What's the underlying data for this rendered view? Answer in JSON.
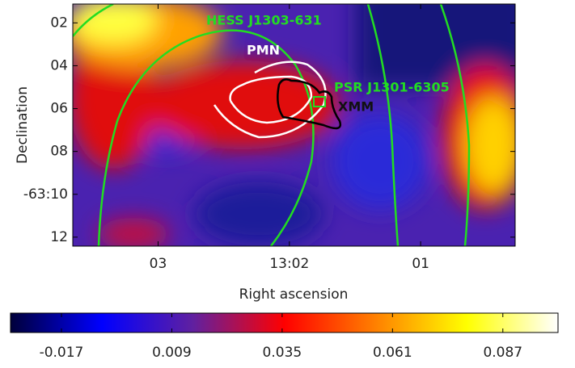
{
  "chart_data": {
    "type": "heatmap",
    "xlabel": "Right ascension",
    "ylabel": "Declination",
    "xlim": [
      3.65,
      0.28
    ],
    "xticks": [
      {
        "value": 3,
        "label": "03"
      },
      {
        "value": 2,
        "label": "13:02"
      },
      {
        "value": 1,
        "label": "01"
      }
    ],
    "ylim": [
      12.42,
      1.12
    ],
    "yticks": [
      {
        "value": 2,
        "label": "02"
      },
      {
        "value": 4,
        "label": "04"
      },
      {
        "value": 6,
        "label": "06"
      },
      {
        "value": 8,
        "label": "08"
      },
      {
        "value": 10,
        "label": "-63:10"
      },
      {
        "value": 12,
        "label": "12"
      }
    ],
    "annotations": [
      "HESS J1303-631",
      "PMN",
      "PSR J1301-6305",
      "XMM"
    ],
    "colorbar": {
      "clim": [
        -0.029,
        0.1
      ],
      "ticks": [
        -0.017,
        0.009,
        0.035,
        0.061,
        0.087
      ],
      "colors": [
        "#00003a",
        "#0000ff",
        "#6020a0",
        "#ff0000",
        "#ff8000",
        "#ffff00",
        "#ffffff"
      ]
    }
  }
}
